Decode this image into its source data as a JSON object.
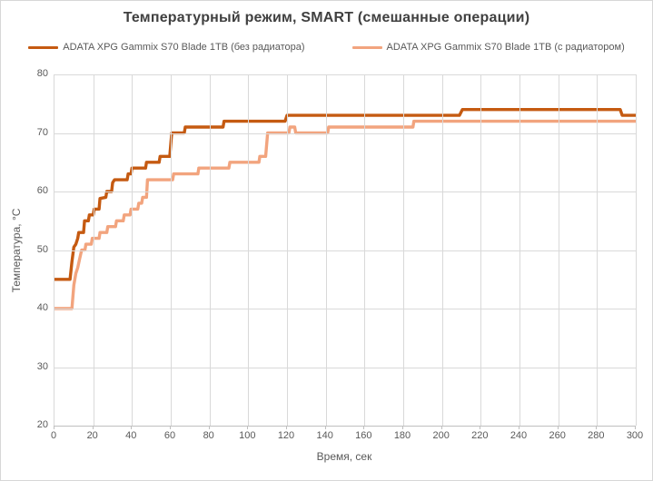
{
  "chart": {
    "title": "Температурный режим, SMART (смешанные операции)",
    "x_axis_title": "Время,  сек",
    "y_axis_title": "Температура, °С"
  },
  "legend": {
    "position": "top",
    "items": [
      {
        "label": "ADATA XPG Gammix S70 Blade 1TB (без радиатора)",
        "color": "#c55a11"
      },
      {
        "label": "ADATA XPG Gammix S70 Blade 1TB (с радиатором)",
        "color": "#f2a47e"
      }
    ]
  },
  "colors": {
    "title_text": "#404040",
    "axis_text": "#595959",
    "gridline": "#d9d9d9",
    "axis_line": "#bfbfbf",
    "background": "#ffffff",
    "series_no_heatsink": "#c55a11",
    "series_with_heatsink": "#f2a47e"
  },
  "chart_data": {
    "type": "line",
    "title": "Температурный режим, SMART (смешанные операции)",
    "xlabel": "Время,  сек",
    "ylabel": "Температура, °С",
    "xlim": [
      0,
      300
    ],
    "ylim": [
      20,
      80
    ],
    "xticks": [
      0,
      20,
      40,
      60,
      80,
      100,
      120,
      140,
      160,
      180,
      200,
      220,
      240,
      260,
      280,
      300
    ],
    "yticks": [
      20,
      30,
      40,
      50,
      60,
      70,
      80
    ],
    "grid": true,
    "legend_position": "top",
    "series": [
      {
        "name": "ADATA XPG Gammix S70 Blade 1TB (без радиатора)",
        "color": "#c55a11",
        "points": [
          [
            0,
            45
          ],
          [
            8,
            45
          ],
          [
            9,
            48
          ],
          [
            10,
            50.5
          ],
          [
            11,
            51
          ],
          [
            12,
            52
          ],
          [
            12.5,
            53
          ],
          [
            15,
            53
          ],
          [
            15.5,
            55
          ],
          [
            17.5,
            55
          ],
          [
            18,
            56
          ],
          [
            20,
            56
          ],
          [
            20.5,
            57
          ],
          [
            23,
            57
          ],
          [
            23.5,
            58.8
          ],
          [
            26.5,
            59
          ],
          [
            27,
            60
          ],
          [
            29.5,
            60
          ],
          [
            30,
            61.5
          ],
          [
            31,
            62
          ],
          [
            37.5,
            62
          ],
          [
            38,
            63
          ],
          [
            39.5,
            63
          ],
          [
            40,
            64
          ],
          [
            47,
            64
          ],
          [
            47.5,
            65
          ],
          [
            54,
            65
          ],
          [
            54.5,
            66
          ],
          [
            59.5,
            66
          ],
          [
            60.5,
            70
          ],
          [
            67,
            70
          ],
          [
            67.5,
            71
          ],
          [
            87,
            71
          ],
          [
            87.5,
            72
          ],
          [
            119,
            72
          ],
          [
            120,
            73
          ],
          [
            209,
            73
          ],
          [
            210.5,
            74
          ],
          [
            292,
            74
          ],
          [
            293,
            73
          ],
          [
            300,
            73
          ]
        ]
      },
      {
        "name": "ADATA XPG Gammix S70 Blade 1TB (с радиатором)",
        "color": "#f2a47e",
        "points": [
          [
            0,
            40
          ],
          [
            9,
            40
          ],
          [
            10,
            44
          ],
          [
            11,
            46
          ],
          [
            12,
            47
          ],
          [
            13,
            48.5
          ],
          [
            14,
            50
          ],
          [
            15.7,
            50
          ],
          [
            16.2,
            51
          ],
          [
            19,
            51
          ],
          [
            19.5,
            52
          ],
          [
            23,
            52
          ],
          [
            23.5,
            53
          ],
          [
            27,
            53
          ],
          [
            27.5,
            54
          ],
          [
            31.5,
            54
          ],
          [
            32,
            55
          ],
          [
            35.5,
            55
          ],
          [
            36,
            56
          ],
          [
            39,
            56
          ],
          [
            39.5,
            57
          ],
          [
            43,
            57
          ],
          [
            43.5,
            58
          ],
          [
            45,
            58
          ],
          [
            45.5,
            59
          ],
          [
            47.5,
            59
          ],
          [
            48,
            62
          ],
          [
            61,
            62
          ],
          [
            61.5,
            63
          ],
          [
            74,
            63
          ],
          [
            74.5,
            64
          ],
          [
            90,
            64
          ],
          [
            90.5,
            65
          ],
          [
            105.5,
            65
          ],
          [
            106,
            66
          ],
          [
            109,
            66
          ],
          [
            110,
            70
          ],
          [
            121,
            70
          ],
          [
            121.5,
            71
          ],
          [
            124,
            71
          ],
          [
            124.5,
            70
          ],
          [
            141,
            70
          ],
          [
            141.5,
            71
          ],
          [
            185,
            71
          ],
          [
            185.5,
            72
          ],
          [
            300,
            72
          ]
        ]
      }
    ]
  }
}
